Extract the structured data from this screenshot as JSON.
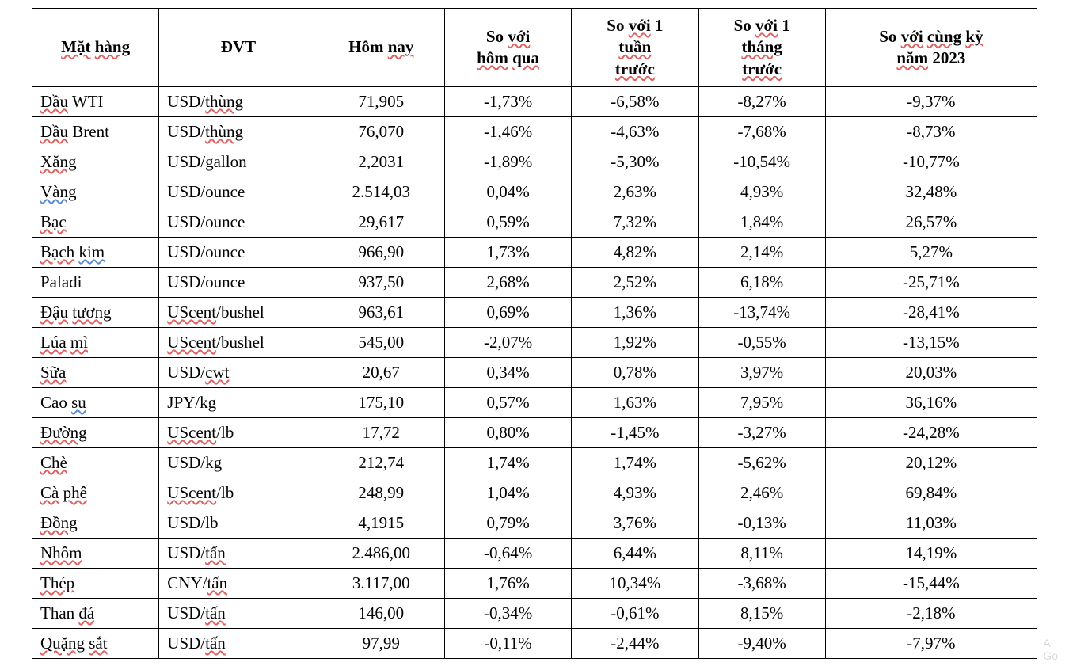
{
  "table": {
    "background_color": "#ffffff",
    "border_color": "#000000",
    "text_color": "#000000",
    "font_family": "Times New Roman",
    "header_fontsize": 21,
    "body_fontsize": 21,
    "columns": [
      {
        "key": "name",
        "label_parts": [
          {
            "t": "Mặt",
            "s": "red"
          },
          {
            "t": " "
          },
          {
            "t": "hàng",
            "s": "red"
          }
        ],
        "align": "left"
      },
      {
        "key": "unit",
        "label_parts": [
          {
            "t": "ĐVT"
          }
        ],
        "align": "left"
      },
      {
        "key": "today",
        "label_parts": [
          {
            "t": "Hôm"
          },
          {
            "t": " "
          },
          {
            "t": "nay",
            "s": "red"
          }
        ],
        "align": "center"
      },
      {
        "key": "d1",
        "label_parts": [
          {
            "t": "So "
          },
          {
            "t": "với",
            "s": "red"
          },
          {
            "br": true
          },
          {
            "t": "hôm",
            "s": "red"
          },
          {
            "t": " "
          },
          {
            "t": "qua",
            "s": "red"
          }
        ],
        "align": "center"
      },
      {
        "key": "w1",
        "label_parts": [
          {
            "t": "So "
          },
          {
            "t": "với",
            "s": "red"
          },
          {
            "t": " 1"
          },
          {
            "br": true
          },
          {
            "t": "tuần",
            "s": "red"
          },
          {
            "br": true
          },
          {
            "t": "trước",
            "s": "red"
          }
        ],
        "align": "center"
      },
      {
        "key": "m1",
        "label_parts": [
          {
            "t": "So "
          },
          {
            "t": "với",
            "s": "red"
          },
          {
            "t": " 1"
          },
          {
            "br": true
          },
          {
            "t": "tháng",
            "s": "red"
          },
          {
            "br": true
          },
          {
            "t": "trước",
            "s": "red"
          }
        ],
        "align": "center"
      },
      {
        "key": "y1",
        "label_parts": [
          {
            "t": "So "
          },
          {
            "t": "với",
            "s": "red"
          },
          {
            "t": " "
          },
          {
            "t": "cùng",
            "s": "red"
          },
          {
            "t": " "
          },
          {
            "t": "kỳ",
            "s": "red"
          },
          {
            "br": true
          },
          {
            "t": "năm",
            "s": "red"
          },
          {
            "t": " 2023"
          }
        ],
        "align": "center"
      }
    ],
    "rows": [
      {
        "name_parts": [
          {
            "t": "Dầu",
            "s": "red"
          },
          {
            "t": " WTI"
          }
        ],
        "unit_parts": [
          {
            "t": "USD/"
          },
          {
            "t": "thùng",
            "s": "red"
          }
        ],
        "today": "71,905",
        "d1": "-1,73%",
        "w1": "-6,58%",
        "m1": "-8,27%",
        "y1": "-9,37%"
      },
      {
        "name_parts": [
          {
            "t": "Dầu",
            "s": "red"
          },
          {
            "t": " Brent"
          }
        ],
        "unit_parts": [
          {
            "t": "USD/"
          },
          {
            "t": "thùng",
            "s": "red"
          }
        ],
        "today": "76,070",
        "d1": "-1,46%",
        "w1": "-4,63%",
        "m1": "-7,68%",
        "y1": "-8,73%"
      },
      {
        "name_parts": [
          {
            "t": "Xăng",
            "s": "red"
          }
        ],
        "unit_parts": [
          {
            "t": "USD/gallon"
          }
        ],
        "today": "2,2031",
        "d1": "-1,89%",
        "w1": "-5,30%",
        "m1": "-10,54%",
        "y1": "-10,77%"
      },
      {
        "name_parts": [
          {
            "t": "Vàng",
            "s": "blue"
          }
        ],
        "unit_parts": [
          {
            "t": "USD/ounce"
          }
        ],
        "today": "2.514,03",
        "d1": "0,04%",
        "w1": "2,63%",
        "m1": "4,93%",
        "y1": "32,48%"
      },
      {
        "name_parts": [
          {
            "t": "Bạc",
            "s": "red"
          }
        ],
        "unit_parts": [
          {
            "t": "USD/ounce"
          }
        ],
        "today": "29,617",
        "d1": "0,59%",
        "w1": "7,32%",
        "m1": "1,84%",
        "y1": "26,57%"
      },
      {
        "name_parts": [
          {
            "t": "Bạch",
            "s": "red"
          },
          {
            "t": " "
          },
          {
            "t": "kim",
            "s": "blue"
          }
        ],
        "unit_parts": [
          {
            "t": "USD/ounce"
          }
        ],
        "today": "966,90",
        "d1": "1,73%",
        "w1": "4,82%",
        "m1": "2,14%",
        "y1": "5,27%"
      },
      {
        "name_parts": [
          {
            "t": "Paladi"
          }
        ],
        "unit_parts": [
          {
            "t": "USD/ounce"
          }
        ],
        "today": "937,50",
        "d1": "2,68%",
        "w1": "2,52%",
        "m1": "6,18%",
        "y1": "-25,71%"
      },
      {
        "name_parts": [
          {
            "t": "Đậu",
            "s": "red"
          },
          {
            "t": " "
          },
          {
            "t": "tương",
            "s": "red"
          }
        ],
        "unit_parts": [
          {
            "t": "UScent",
            "s": "red"
          },
          {
            "t": "/bushel"
          }
        ],
        "today": "963,61",
        "d1": "0,69%",
        "w1": "1,36%",
        "m1": "-13,74%",
        "y1": "-28,41%"
      },
      {
        "name_parts": [
          {
            "t": "Lúa",
            "s": "red"
          },
          {
            "t": " "
          },
          {
            "t": "mì",
            "s": "red"
          }
        ],
        "unit_parts": [
          {
            "t": "UScent",
            "s": "red"
          },
          {
            "t": "/bushel"
          }
        ],
        "today": "545,00",
        "d1": "-2,07%",
        "w1": "1,92%",
        "m1": "-0,55%",
        "y1": "-13,15%"
      },
      {
        "name_parts": [
          {
            "t": "Sữa",
            "s": "red"
          }
        ],
        "unit_parts": [
          {
            "t": "USD/"
          },
          {
            "t": "cwt",
            "s": "red"
          }
        ],
        "today": "20,67",
        "d1": "0,34%",
        "w1": "0,78%",
        "m1": "3,97%",
        "y1": "20,03%"
      },
      {
        "name_parts": [
          {
            "t": "Cao "
          },
          {
            "t": "su",
            "s": "blue"
          }
        ],
        "unit_parts": [
          {
            "t": "JPY/kg"
          }
        ],
        "today": "175,10",
        "d1": "0,57%",
        "w1": "1,63%",
        "m1": "7,95%",
        "y1": "36,16%"
      },
      {
        "name_parts": [
          {
            "t": "Đường",
            "s": "red"
          }
        ],
        "unit_parts": [
          {
            "t": "UScent",
            "s": "red"
          },
          {
            "t": "/lb"
          }
        ],
        "today": "17,72",
        "d1": "0,80%",
        "w1": "-1,45%",
        "m1": "-3,27%",
        "y1": "-24,28%"
      },
      {
        "name_parts": [
          {
            "t": "Chè",
            "s": "red"
          }
        ],
        "unit_parts": [
          {
            "t": "USD/kg"
          }
        ],
        "today": "212,74",
        "d1": "1,74%",
        "w1": "1,74%",
        "m1": "-5,62%",
        "y1": "20,12%"
      },
      {
        "name_parts": [
          {
            "t": "Cà",
            "s": "red"
          },
          {
            "t": " "
          },
          {
            "t": "phê",
            "s": "red"
          }
        ],
        "unit_parts": [
          {
            "t": "UScent",
            "s": "red"
          },
          {
            "t": "/lb"
          }
        ],
        "today": "248,99",
        "d1": "1,04%",
        "w1": "4,93%",
        "m1": "2,46%",
        "y1": "69,84%"
      },
      {
        "name_parts": [
          {
            "t": "Đồng",
            "s": "red"
          }
        ],
        "unit_parts": [
          {
            "t": "USD/lb"
          }
        ],
        "today": "4,1915",
        "d1": "0,79%",
        "w1": "3,76%",
        "m1": "-0,13%",
        "y1": "11,03%"
      },
      {
        "name_parts": [
          {
            "t": "Nhôm",
            "s": "red"
          }
        ],
        "unit_parts": [
          {
            "t": "USD/"
          },
          {
            "t": "tấn",
            "s": "red"
          }
        ],
        "today": "2.486,00",
        "d1": "-0,64%",
        "w1": "6,44%",
        "m1": "8,11%",
        "y1": "14,19%"
      },
      {
        "name_parts": [
          {
            "t": "Thép",
            "s": "red"
          }
        ],
        "unit_parts": [
          {
            "t": "CNY/"
          },
          {
            "t": "tấn",
            "s": "red"
          }
        ],
        "today": "3.117,00",
        "d1": "1,76%",
        "w1": "10,34%",
        "m1": "-3,68%",
        "y1": "-15,44%"
      },
      {
        "name_parts": [
          {
            "t": "Than "
          },
          {
            "t": "đá",
            "s": "red"
          }
        ],
        "unit_parts": [
          {
            "t": "USD/"
          },
          {
            "t": "tấn",
            "s": "red"
          }
        ],
        "today": "146,00",
        "d1": "-0,34%",
        "w1": "-0,61%",
        "m1": "8,15%",
        "y1": "-2,18%"
      },
      {
        "name_parts": [
          {
            "t": "Quặng",
            "s": "red"
          },
          {
            "t": " "
          },
          {
            "t": "sắt",
            "s": "red"
          }
        ],
        "unit_parts": [
          {
            "t": "USD/"
          },
          {
            "t": "tấn",
            "s": "red"
          }
        ],
        "today": "97,99",
        "d1": "-0,11%",
        "w1": "-2,44%",
        "m1": "-9,40%",
        "y1": "-7,97%"
      }
    ]
  },
  "watermark": {
    "line1": "A",
    "line2": "Go"
  }
}
